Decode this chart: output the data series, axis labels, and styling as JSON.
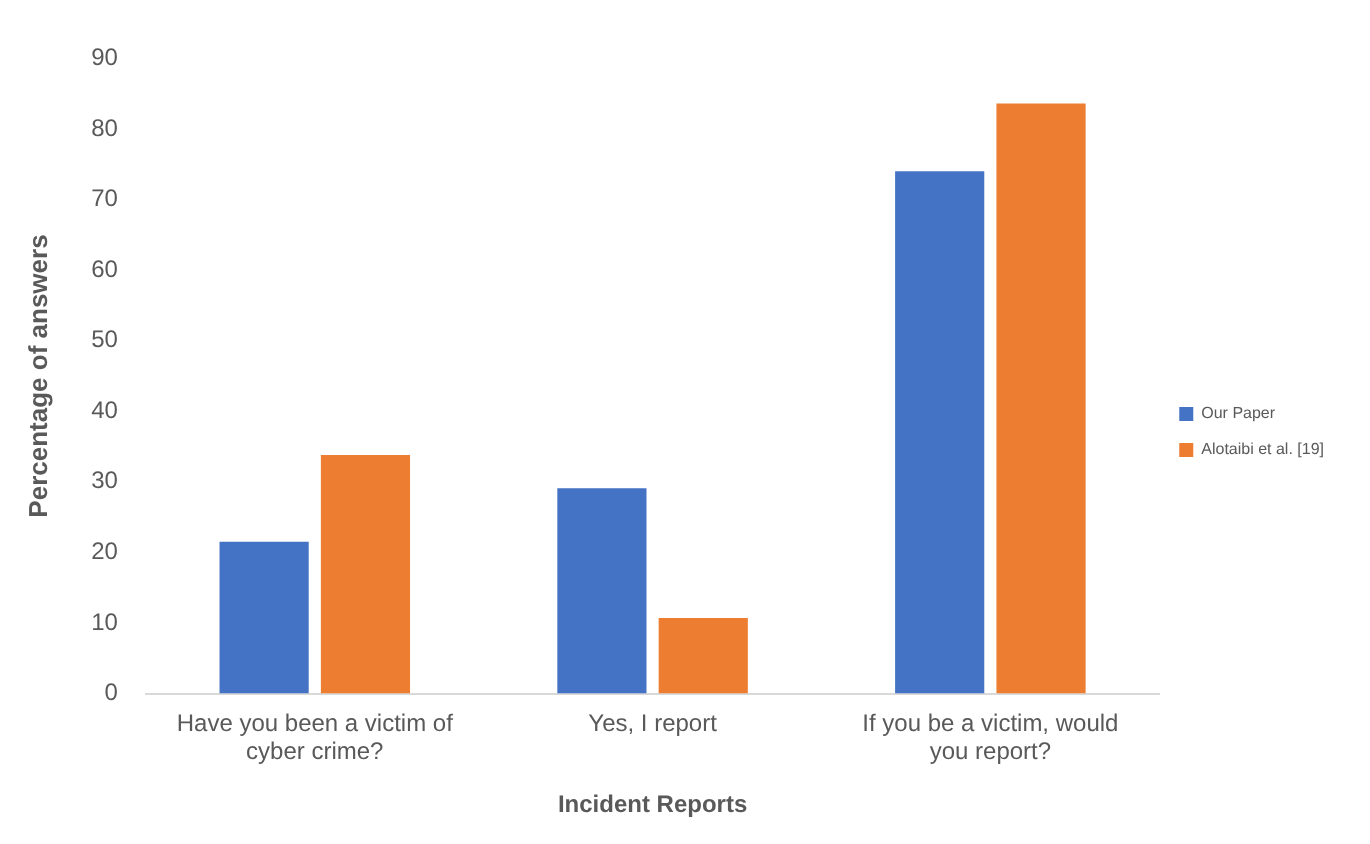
{
  "chart_data": {
    "type": "bar",
    "xlabel": "Incident Reports",
    "ylabel": "Percentage of answers",
    "categories": [
      "Have you been a victim of cyber crime?",
      "Yes, I report",
      "If you be a victim, would you report?"
    ],
    "series": [
      {
        "name": "Our Paper",
        "color": "#4472c4",
        "values": [
          21.5,
          29.1,
          74.0
        ]
      },
      {
        "name": "Alotaibi et al. [19]",
        "color": "#ed7d31",
        "values": [
          33.8,
          10.7,
          83.6
        ]
      }
    ],
    "ylim": [
      0,
      90
    ],
    "yticks": [
      0,
      10,
      20,
      30,
      40,
      50,
      60,
      70,
      80,
      90
    ],
    "grid": false,
    "legend": "right"
  }
}
